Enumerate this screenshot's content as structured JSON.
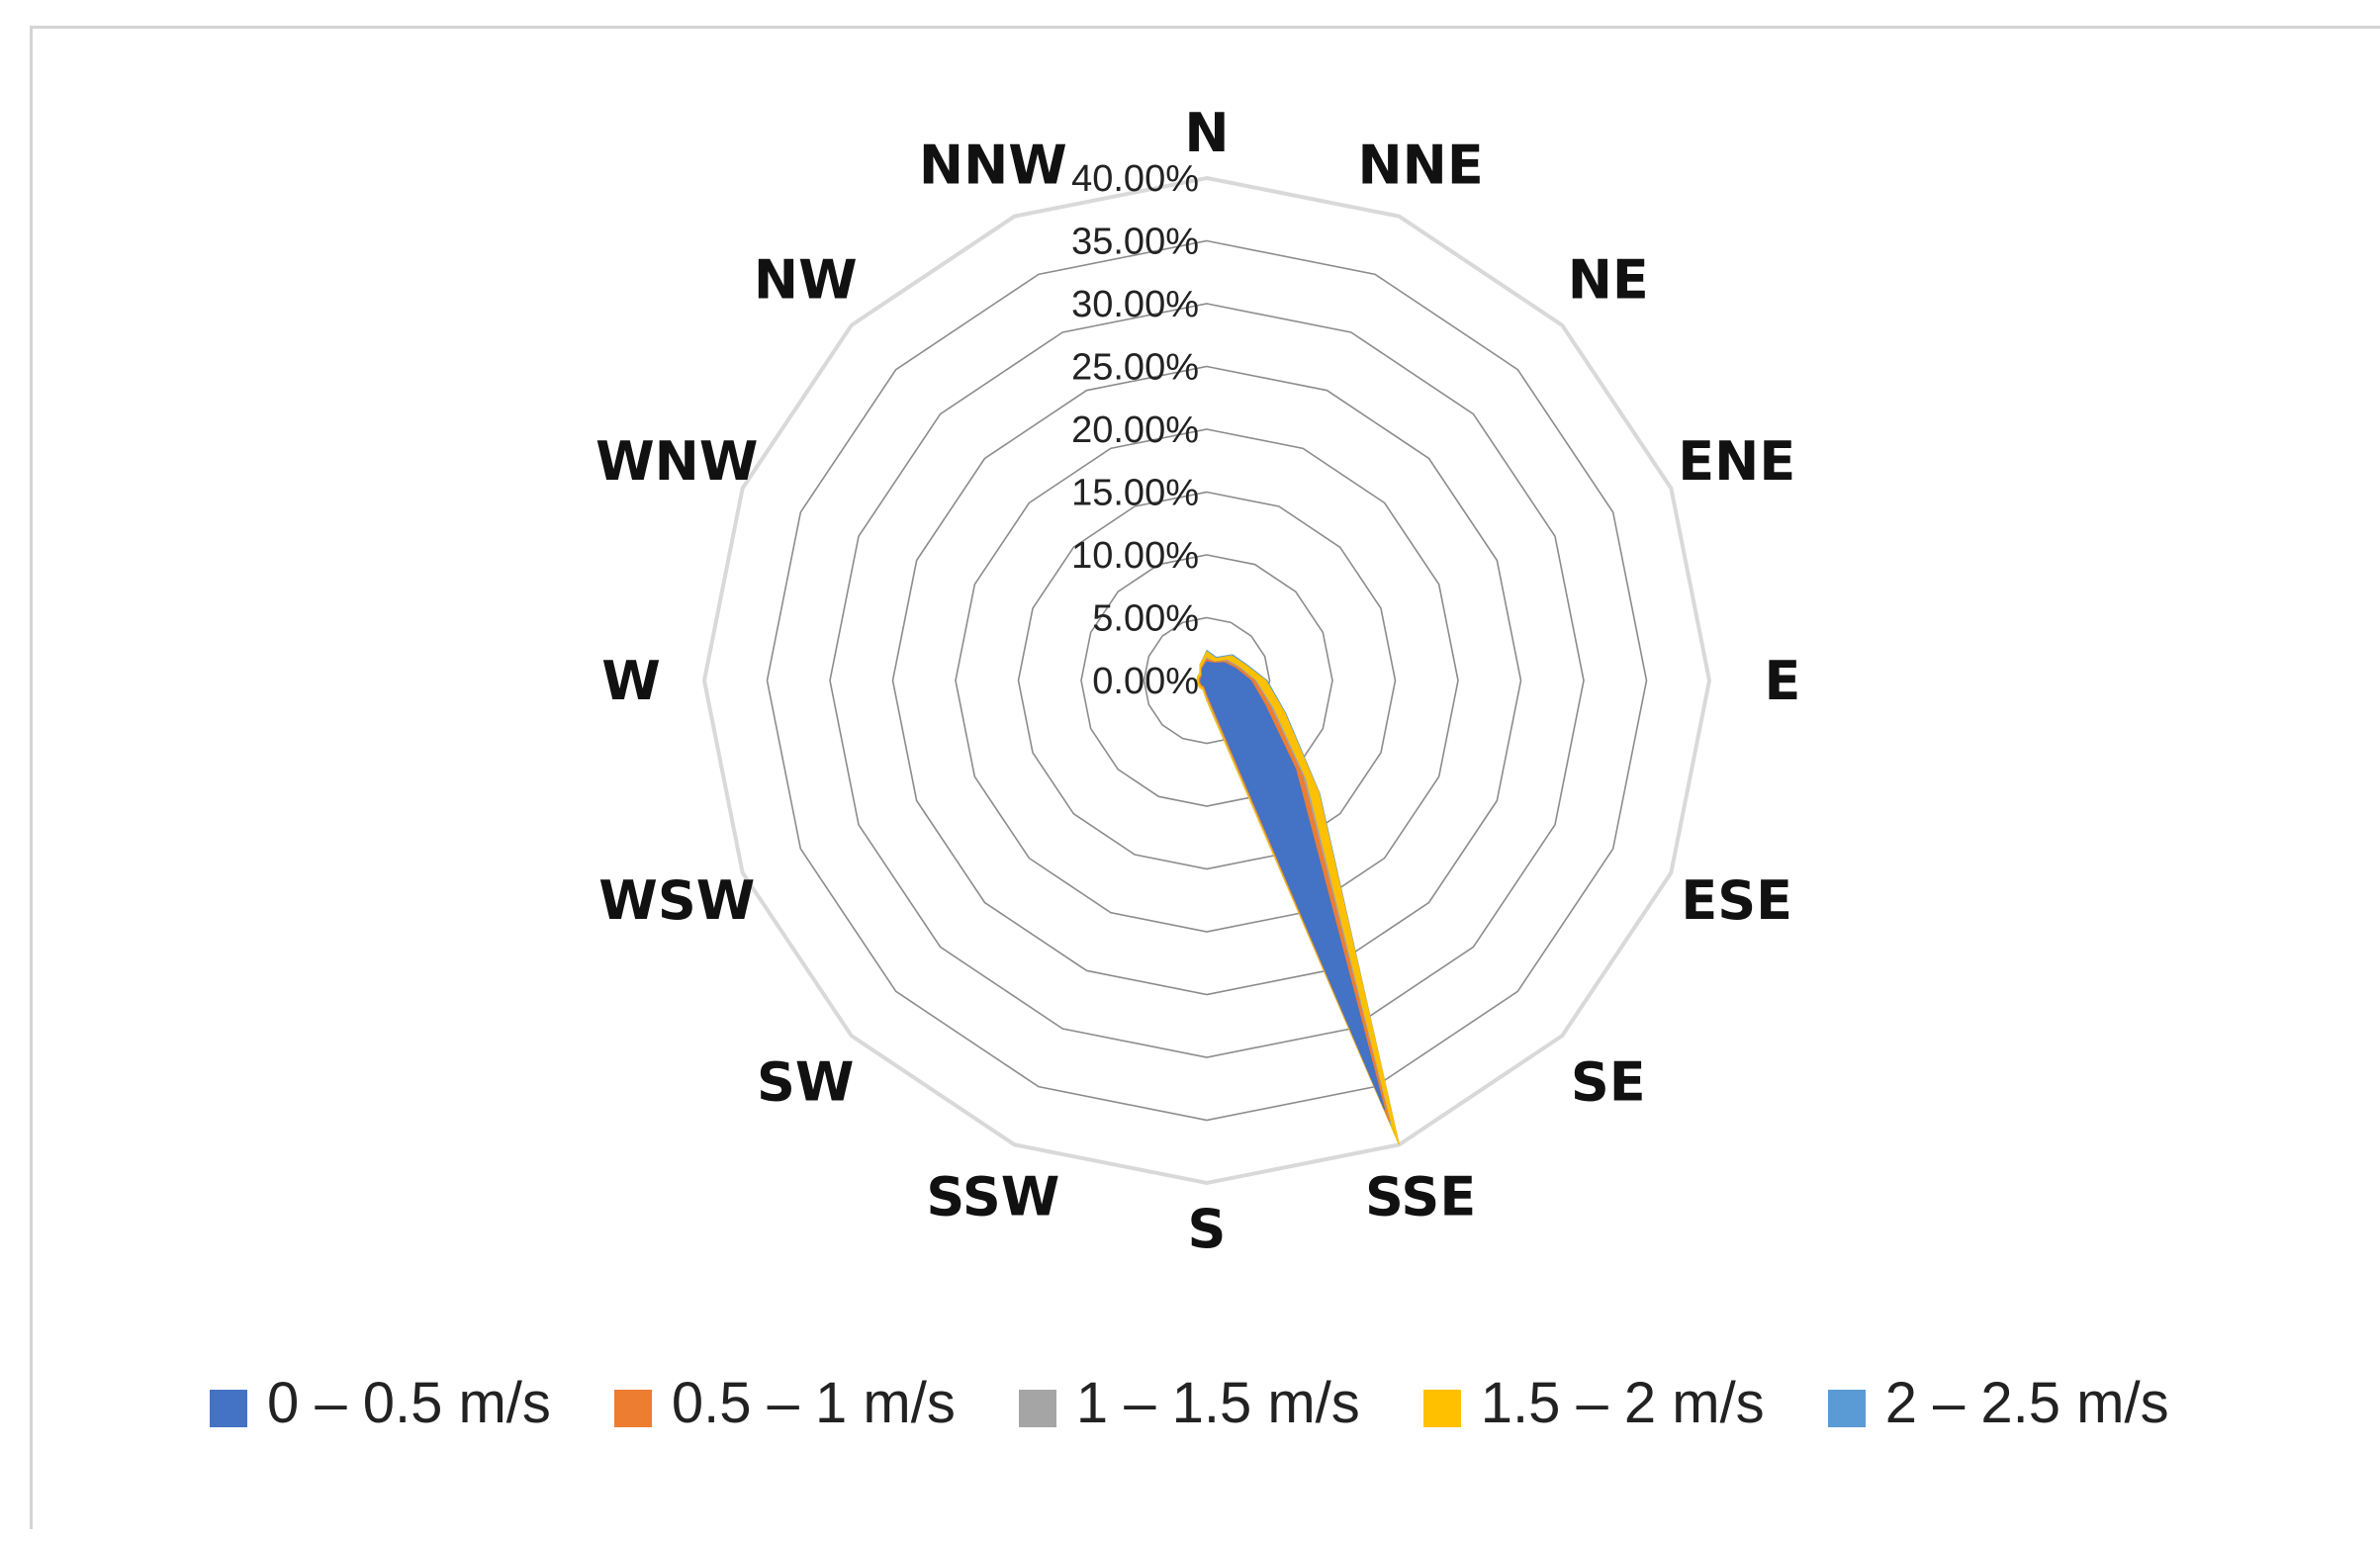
{
  "chart_data": {
    "type": "radar",
    "title": "",
    "directions": [
      "N",
      "NNE",
      "NE",
      "ENE",
      "E",
      "ESE",
      "SE",
      "SSE",
      "S",
      "SSW",
      "SW",
      "WSW",
      "W",
      "WNW",
      "NW",
      "NNW"
    ],
    "radial_ticks": [
      "0.00%",
      "5.00%",
      "10.00%",
      "15.00%",
      "20.00%",
      "25.00%",
      "30.00%",
      "35.00%",
      "40.00%"
    ],
    "rlim": [
      0,
      40
    ],
    "stacked": true,
    "series": [
      {
        "name": "0 – 0.5 m/s",
        "color": "#4472C4",
        "values": [
          1.5,
          1.5,
          2.0,
          2.5,
          3.5,
          5.0,
          10.0,
          37.0,
          1.0,
          0.5,
          0.5,
          0.5,
          0.5,
          0.5,
          0.5,
          1.0
        ]
      },
      {
        "name": "0.5 – 1 m/s",
        "color": "#ED7D31",
        "values": [
          0.2,
          0.1,
          0.2,
          0.2,
          0.3,
          0.5,
          0.8,
          1.0,
          0.2,
          0.1,
          0.1,
          0.1,
          0.1,
          0.1,
          0.1,
          0.1
        ]
      },
      {
        "name": "1 – 1.5 m/s",
        "color": "#A5A5A5",
        "values": [
          0.1,
          0.0,
          0.1,
          0.1,
          0.1,
          0.2,
          0.3,
          0.3,
          0.1,
          0.0,
          0.0,
          0.0,
          0.0,
          0.0,
          0.0,
          0.0
        ]
      },
      {
        "name": "1.5 – 2 m/s",
        "color": "#FFC000",
        "values": [
          0.5,
          0.3,
          0.5,
          0.5,
          0.8,
          1.0,
          1.5,
          4.0,
          0.3,
          0.2,
          0.2,
          0.2,
          0.2,
          0.2,
          0.2,
          0.3
        ]
      },
      {
        "name": "2 – 2.5 m/s",
        "color": "#5B9BD5",
        "values": [
          0.1,
          0.1,
          0.1,
          0.1,
          0.1,
          0.1,
          0.1,
          0.2,
          0.0,
          0.0,
          0.0,
          0.0,
          0.0,
          0.0,
          0.0,
          0.0
        ]
      }
    ],
    "legend": "bottom",
    "grid": true
  }
}
